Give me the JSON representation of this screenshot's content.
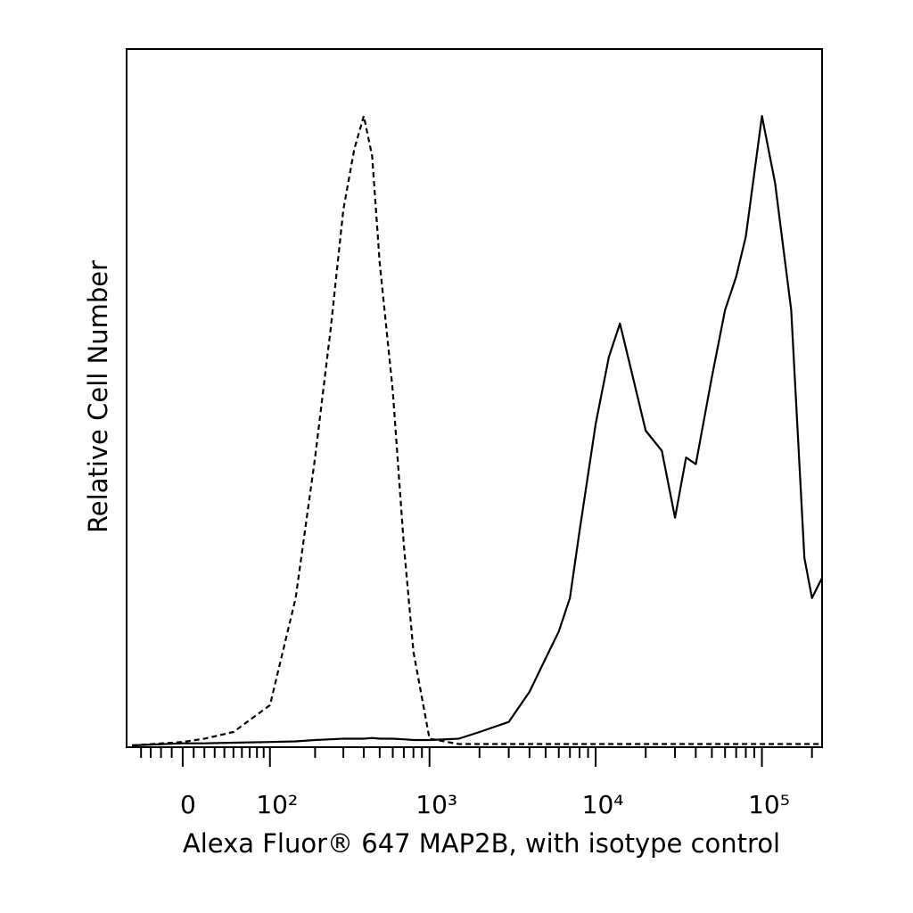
{
  "chart_data": {
    "type": "line",
    "xlabel": "Alexa Fluor® 647 MAP2B, with isotype control",
    "ylabel": "Relative Cell Number",
    "xscale": "biexponential",
    "xlim": [
      -50,
      230000
    ],
    "ylim": [
      0,
      100
    ],
    "xticks": [
      0,
      {
        "value": 100,
        "label": "10²"
      },
      {
        "value": 1000,
        "label": "10³"
      },
      {
        "value": 10000,
        "label": "10⁴"
      },
      {
        "value": 100000,
        "label": "10⁵"
      }
    ],
    "xminor_ticks": [
      -40,
      -30,
      -20,
      -10,
      10,
      20,
      30,
      40,
      50,
      60,
      70,
      80,
      90,
      200,
      300,
      400,
      500,
      600,
      700,
      800,
      900,
      2000,
      3000,
      4000,
      5000,
      6000,
      7000,
      8000,
      9000,
      20000,
      30000,
      40000,
      50000,
      60000,
      70000,
      80000,
      90000,
      200000
    ],
    "x": [
      -50,
      0,
      20,
      50,
      100,
      150,
      200,
      250,
      300,
      350,
      400,
      450,
      500,
      600,
      700,
      800,
      1000,
      1500,
      2000,
      3000,
      4000,
      5000,
      6000,
      7000,
      8000,
      10000,
      12000,
      14000,
      16000,
      20000,
      25000,
      30000,
      35000,
      40000,
      50000,
      60000,
      70000,
      80000,
      100000,
      120000,
      150000,
      180000,
      200000,
      230000
    ],
    "series": [
      {
        "style": "solid",
        "color": "#000000",
        "values": [
          0,
          0.3,
          0.3,
          0.4,
          0.5,
          0.6,
          0.8,
          0.9,
          1,
          1,
          1,
          1.1,
          1,
          1,
          0.9,
          0.8,
          0.8,
          1,
          2,
          3.5,
          8,
          13,
          17,
          22,
          32,
          48,
          58,
          63,
          57,
          47,
          44,
          34,
          43,
          42,
          55,
          65,
          70,
          76,
          94,
          84,
          65,
          28,
          22,
          25
        ]
      },
      {
        "style": "dashed",
        "color": "#000000",
        "values": [
          0,
          0.5,
          1,
          2,
          6,
          22,
          43,
          62,
          80,
          89,
          94,
          88,
          72,
          53,
          30,
          14,
          1,
          0.2,
          0.2,
          0.2,
          0.2,
          0.2,
          0.2,
          0.2,
          0.2,
          0.2,
          0.2,
          0.2,
          0.2,
          0.2,
          0.2,
          0.2,
          0.2,
          0.2,
          0.2,
          0.2,
          0.2,
          0.2,
          0.2,
          0.2,
          0.2,
          0.2,
          0.2,
          0.2
        ]
      }
    ]
  }
}
